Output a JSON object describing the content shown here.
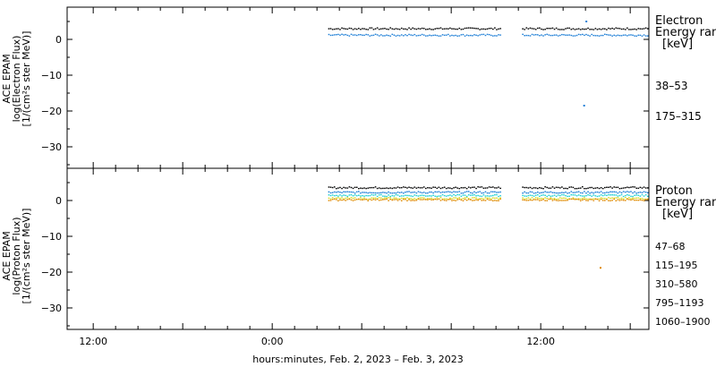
{
  "colors": {
    "black": "#000000",
    "blue": "#1f7fd6",
    "cyan": "#20d0d0",
    "yellow": "#d8d820",
    "orange": "#e08a00"
  },
  "chart_data": [
    {
      "type": "scatter",
      "panel": "electron",
      "ylabel_lines": [
        "ACE EPAM",
        "log(Electron Flux)",
        "[1/(cm²s ster MeV)]"
      ],
      "ylim": [
        -36,
        9
      ],
      "yticks": [
        0,
        -10,
        -20,
        -30
      ],
      "xlim_hours": [
        -15.5,
        62.5
      ],
      "legend_title": [
        "Electron",
        "Energy range",
        "[keV]"
      ],
      "series": [
        {
          "name": "38–53",
          "color": "#000000",
          "approx_value": 3.0,
          "x_segments": [
            [
              19.5,
              42.5
            ],
            [
              45.5,
              64.5
            ]
          ]
        },
        {
          "name": "175–315",
          "color": "#1f7fd6",
          "approx_value": 1.2,
          "x_segments": [
            [
              19.5,
              42.5
            ],
            [
              45.5,
              64.5
            ]
          ]
        }
      ],
      "outliers": [
        {
          "series": "175–315",
          "x": 53.7,
          "y": -18.5
        },
        {
          "series": "175–315",
          "x": 54.0,
          "y": 5.0
        }
      ]
    },
    {
      "type": "scatter",
      "panel": "proton",
      "ylabel_lines": [
        "ACE EPAM",
        "log(Proton Flux)",
        "[1/(cm²s ster MeV)]"
      ],
      "ylim": [
        -36,
        9
      ],
      "yticks": [
        0,
        -10,
        -20,
        -30
      ],
      "xlim_hours": [
        -15.5,
        62.5
      ],
      "legend_title": [
        "Proton",
        "Energy range",
        "[keV]"
      ],
      "series": [
        {
          "name": "47–68",
          "color": "#000000",
          "approx_value": 3.6
        },
        {
          "name": "115–195",
          "color": "#1f7fd6",
          "approx_value": 2.3
        },
        {
          "name": "310–580",
          "color": "#20d0d0",
          "approx_value": 1.4
        },
        {
          "name": "795–1193",
          "color": "#d8d820",
          "approx_value": 0.6
        },
        {
          "name": "1060–1900",
          "color": "#e08a00",
          "approx_value": 0.2
        }
      ],
      "outliers": [
        {
          "series": "1060–1900",
          "x": 55.9,
          "y": -18.8
        }
      ]
    }
  ],
  "x_axis": {
    "tick_labels": [
      "12:00",
      "0:00",
      "12:00"
    ],
    "xlabel": "hours:minutes, Feb.  2, 2023 – Feb.  3, 2023"
  }
}
